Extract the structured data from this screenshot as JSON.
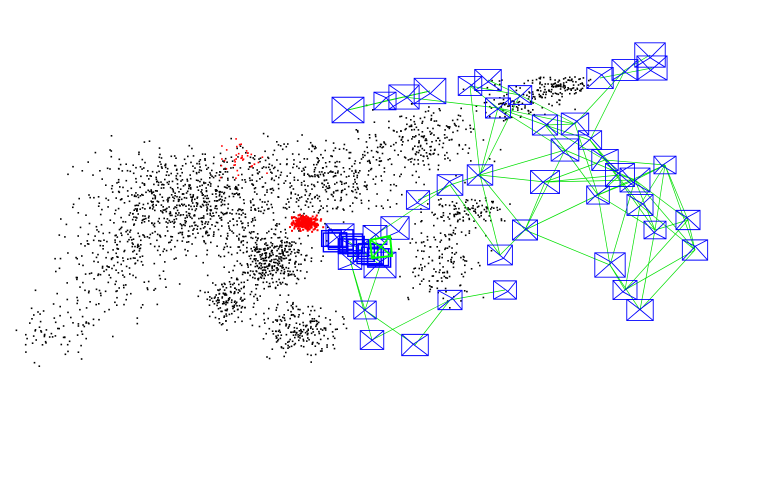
{
  "scene": {
    "background": "#ffffff",
    "colors": {
      "map_points": "#000000",
      "local_map_points": "#ff0000",
      "keyframes": "#0000ff",
      "covisibility_graph": "#00e000",
      "current_camera": "#00ff00"
    }
  }
}
